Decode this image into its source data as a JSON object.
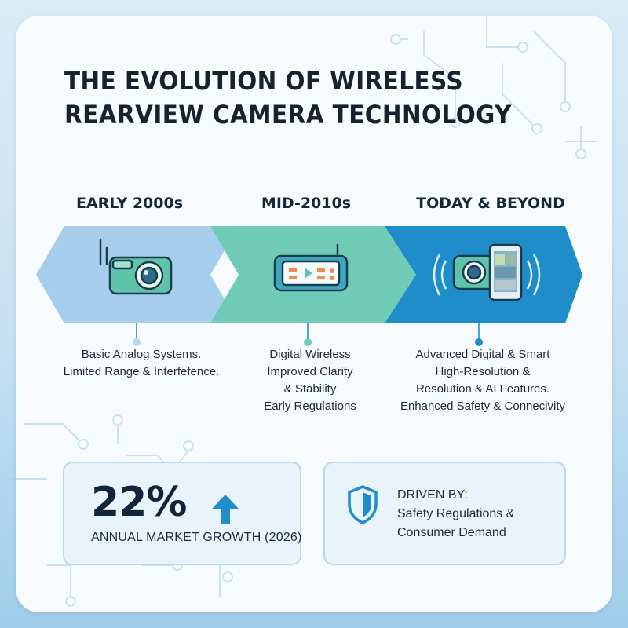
{
  "title": {
    "line1": "THE EVOLUTION OF WIRELESS",
    "line2": "REARVIEW CAMERA TECHNOLOGY"
  },
  "colors": {
    "stage1": "#a7cdec",
    "stage2": "#6fcbb5",
    "stage3": "#1f8dc9",
    "accent": "#1f8dc9"
  },
  "stages": [
    {
      "era": "EARLY 2000s",
      "icon": "analog-camera-with-antenna-icon",
      "lines": [
        "Basic Analog Systems.",
        "Limited Range & Interfefence."
      ]
    },
    {
      "era": "MID-2010s",
      "icon": "digital-wireless-monitor-icon",
      "lines": [
        "Digital Wireless",
        "Improved Clarity",
        "& Stability",
        "Early Regulations"
      ]
    },
    {
      "era": "TODAY & BEYOND",
      "icon": "smart-camera-and-phone-icon",
      "lines": [
        "Advanced Digital & Smart",
        "High-Resolution &",
        "Resolution & AI Features.",
        "Enhanced Safety & Connecivity"
      ]
    }
  ],
  "stat": {
    "value": "22%",
    "label": "ANNUAL MARKET GROWTH (2026)",
    "icon": "arrow-up-icon"
  },
  "drivers": {
    "heading": "DRIVEN BY:",
    "line1": "Safety Regulations &",
    "line2": "Consumer Demand",
    "icon": "shield-icon"
  }
}
